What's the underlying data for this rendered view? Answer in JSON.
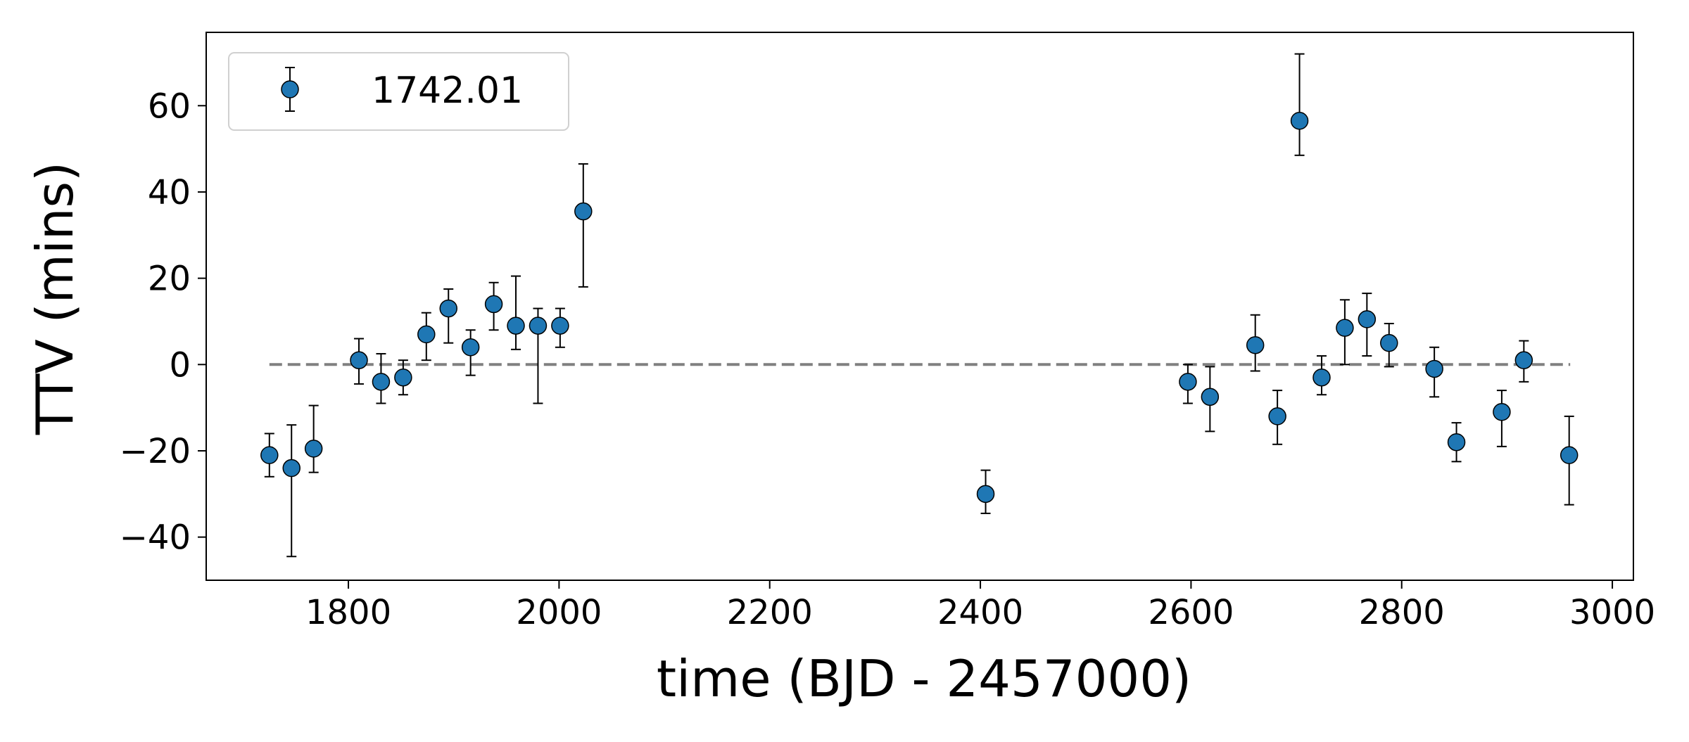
{
  "chart_data": {
    "type": "scatter",
    "title": "",
    "xlabel": "time (BJD - 2457000)",
    "ylabel": "TTV (mins)",
    "xlim": [
      1665,
      3020
    ],
    "ylim": [
      -50,
      77
    ],
    "xticks": [
      1800,
      2000,
      2200,
      2400,
      2600,
      2800,
      3000
    ],
    "yticks": [
      -40,
      -20,
      0,
      20,
      40,
      60
    ],
    "xtick_labels": [
      "1800",
      "2000",
      "2200",
      "2400",
      "2600",
      "2800",
      "3000"
    ],
    "ytick_labels": [
      "−40",
      "−20",
      "0",
      "20",
      "40",
      "60"
    ],
    "grid": false,
    "legend": {
      "position": "top-left",
      "entries": [
        "1742.01"
      ]
    },
    "reference_line": {
      "y": 0,
      "x_range": [
        1725,
        2960
      ],
      "style": "dashed",
      "color": "#808080"
    },
    "marker_color": "#1f77b4",
    "series": [
      {
        "name": "1742.01",
        "points": [
          {
            "x": 1725,
            "y": -21,
            "yerr": [
              5,
              5
            ]
          },
          {
            "x": 1746,
            "y": -24,
            "yerr": [
              20.5,
              10
            ]
          },
          {
            "x": 1767,
            "y": -19.5,
            "yerr": [
              5.5,
              10
            ]
          },
          {
            "x": 1810,
            "y": 1,
            "yerr": [
              5.5,
              5
            ]
          },
          {
            "x": 1831,
            "y": -4,
            "yerr": [
              5,
              6.5
            ]
          },
          {
            "x": 1852,
            "y": -3,
            "yerr": [
              4,
              4
            ]
          },
          {
            "x": 1874,
            "y": 7,
            "yerr": [
              6,
              5
            ]
          },
          {
            "x": 1895,
            "y": 13,
            "yerr": [
              8,
              4.5
            ]
          },
          {
            "x": 1916,
            "y": 4,
            "yerr": [
              6.5,
              4
            ]
          },
          {
            "x": 1938,
            "y": 14,
            "yerr": [
              6,
              5
            ]
          },
          {
            "x": 1959,
            "y": 9,
            "yerr": [
              5.5,
              11.5
            ]
          },
          {
            "x": 1980,
            "y": 9,
            "yerr": [
              18,
              4
            ]
          },
          {
            "x": 2001,
            "y": 9,
            "yerr": [
              5,
              4
            ]
          },
          {
            "x": 2023,
            "y": 35.5,
            "yerr": [
              17.5,
              11
            ]
          },
          {
            "x": 2405,
            "y": -30,
            "yerr": [
              4.5,
              5.5
            ]
          },
          {
            "x": 2597,
            "y": -4,
            "yerr": [
              5,
              4
            ]
          },
          {
            "x": 2618,
            "y": -7.5,
            "yerr": [
              8,
              7
            ]
          },
          {
            "x": 2661,
            "y": 4.5,
            "yerr": [
              6,
              7
            ]
          },
          {
            "x": 2682,
            "y": -12,
            "yerr": [
              6.5,
              6
            ]
          },
          {
            "x": 2703,
            "y": 56.5,
            "yerr": [
              8,
              15.5
            ]
          },
          {
            "x": 2724,
            "y": -3,
            "yerr": [
              4,
              5
            ]
          },
          {
            "x": 2746,
            "y": 8.5,
            "yerr": [
              8.5,
              6.5
            ]
          },
          {
            "x": 2767,
            "y": 10.5,
            "yerr": [
              8.5,
              6
            ]
          },
          {
            "x": 2788,
            "y": 5,
            "yerr": [
              5.5,
              4.5
            ]
          },
          {
            "x": 2831,
            "y": -1,
            "yerr": [
              6.5,
              5
            ]
          },
          {
            "x": 2852,
            "y": -18,
            "yerr": [
              4.5,
              4.5
            ]
          },
          {
            "x": 2895,
            "y": -11,
            "yerr": [
              8,
              5
            ]
          },
          {
            "x": 2916,
            "y": 1,
            "yerr": [
              5,
              4.5
            ]
          },
          {
            "x": 2959,
            "y": -21,
            "yerr": [
              11.5,
              9
            ]
          }
        ]
      }
    ]
  }
}
